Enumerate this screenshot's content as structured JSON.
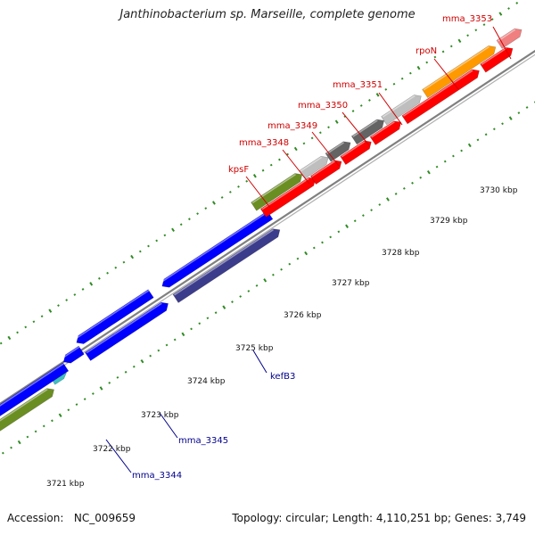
{
  "header": {
    "title": "Janthinobacterium sp. Marseille, complete genome"
  },
  "footer": {
    "accession_label": "Accession:",
    "accession": "NC_009659",
    "topology_label": "Topology:",
    "topology": "circular",
    "length_label": "Length:",
    "length": "4,110,251 bp",
    "genes_label": "Genes:",
    "genes": "3,749"
  },
  "colors": {
    "ring": "#808080",
    "tick": "#2e8b22",
    "red_gene": "#ff0000",
    "blue_gene": "#0000ff",
    "navy_gene": "#3c3c8c",
    "olive_gene": "#6b8e23",
    "gray_gene": "#bebebe",
    "dark_gray_gene": "#646464",
    "orange_gene": "#ff9900",
    "pink_gene": "#f08080",
    "cyan_gene": "#40c0c0",
    "label_red": "#d00000",
    "label_blue": "#00008b"
  },
  "scale_labels": [
    "3721 kbp",
    "3722 kbp",
    "3723 kbp",
    "3724 kbp",
    "3725 kbp",
    "3726 kbp",
    "3727 kbp",
    "3728 kbp",
    "3729 kbp",
    "3730 kbp"
  ],
  "gene_labels": [
    {
      "id": "mma_3353",
      "text": "mma_3353",
      "color": "red"
    },
    {
      "id": "rpoN",
      "text": "rpoN",
      "color": "red"
    },
    {
      "id": "mma_3351",
      "text": "mma_3351",
      "color": "red"
    },
    {
      "id": "mma_3350",
      "text": "mma_3350",
      "color": "red"
    },
    {
      "id": "mma_3349",
      "text": "mma_3349",
      "color": "red"
    },
    {
      "id": "mma_3348",
      "text": "mma_3348",
      "color": "red"
    },
    {
      "id": "kpsF",
      "text": "kpsF",
      "color": "red"
    },
    {
      "id": "kefB3",
      "text": "kefB3",
      "color": "blue"
    },
    {
      "id": "mma_3345",
      "text": "mma_3345",
      "color": "blue"
    },
    {
      "id": "mma_3344",
      "text": "mma_3344",
      "color": "blue"
    }
  ]
}
